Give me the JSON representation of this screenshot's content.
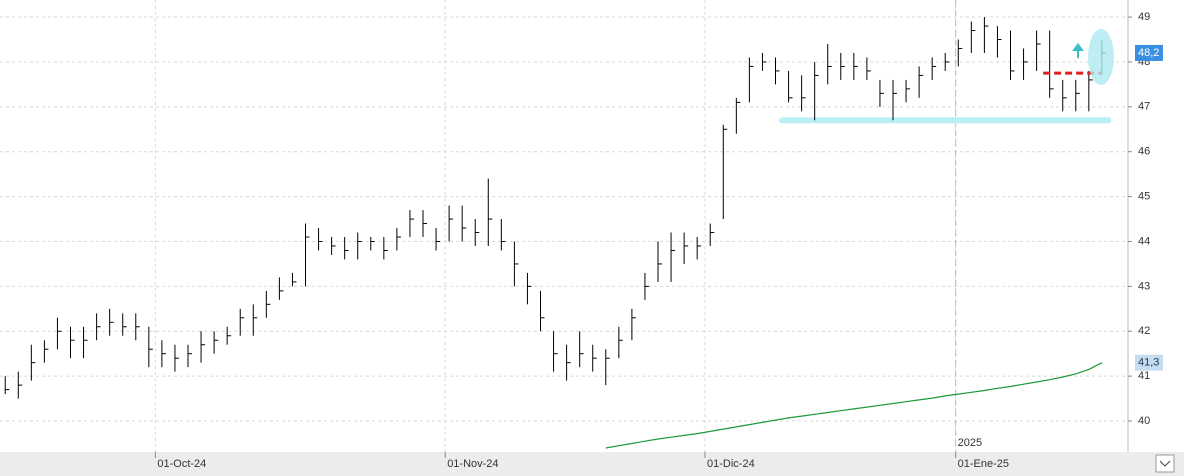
{
  "chart_data": {
    "type": "ohlc",
    "high": [
      41.0,
      41.1,
      41.7,
      41.8,
      42.3,
      42.1,
      42.1,
      42.4,
      42.5,
      42.4,
      42.4,
      42.1,
      41.8,
      41.7,
      41.7,
      42.0,
      42.0,
      42.1,
      42.5,
      42.6,
      42.9,
      43.2,
      43.3,
      44.4,
      44.3,
      44.1,
      44.1,
      44.2,
      44.1,
      44.1,
      44.3,
      44.7,
      44.7,
      44.3,
      44.8,
      44.8,
      44.5,
      45.4,
      44.5,
      44.0,
      43.3,
      42.9,
      42.0,
      41.7,
      42.0,
      41.7,
      41.6,
      42.1,
      42.5,
      43.3,
      44.0,
      44.2,
      44.2,
      44.1,
      44.4,
      46.6,
      47.2,
      48.1,
      48.2,
      48.1,
      47.8,
      47.7,
      48.0,
      48.4,
      48.2,
      48.2,
      48.1,
      47.6,
      47.6,
      47.6,
      47.9,
      48.1,
      48.2,
      48.5,
      48.9,
      49.0,
      48.8,
      48.7,
      48.3,
      48.7,
      48.7,
      47.6,
      47.6,
      47.8,
      48.5
    ],
    "low": [
      40.6,
      40.5,
      40.9,
      41.3,
      41.6,
      41.4,
      41.4,
      41.8,
      41.9,
      41.9,
      41.8,
      41.2,
      41.2,
      41.1,
      41.2,
      41.3,
      41.5,
      41.7,
      41.9,
      41.9,
      42.3,
      42.7,
      43.0,
      43.0,
      43.8,
      43.7,
      43.6,
      43.6,
      43.8,
      43.6,
      43.8,
      44.1,
      44.1,
      43.8,
      44.0,
      44.0,
      43.9,
      43.9,
      43.8,
      43.0,
      42.6,
      42.0,
      41.1,
      40.9,
      41.2,
      41.1,
      40.8,
      41.4,
      41.8,
      42.7,
      43.1,
      43.1,
      43.5,
      43.6,
      43.9,
      44.5,
      46.4,
      47.1,
      47.8,
      47.5,
      47.1,
      46.9,
      46.7,
      47.5,
      47.6,
      47.6,
      47.6,
      47.0,
      46.7,
      47.1,
      47.2,
      47.6,
      47.8,
      47.9,
      48.2,
      48.2,
      48.1,
      47.6,
      47.6,
      47.8,
      47.2,
      46.9,
      46.9,
      46.9,
      47.7
    ],
    "close": [
      40.7,
      40.8,
      41.3,
      41.6,
      42.0,
      41.8,
      41.8,
      42.1,
      42.2,
      42.1,
      42.1,
      41.6,
      41.5,
      41.4,
      41.5,
      41.7,
      41.8,
      41.9,
      42.3,
      42.3,
      42.6,
      42.9,
      43.1,
      44.1,
      44.0,
      43.9,
      43.8,
      44.0,
      44.0,
      43.8,
      44.1,
      44.5,
      44.4,
      44.0,
      44.5,
      44.3,
      44.2,
      44.5,
      44.0,
      43.5,
      43.0,
      42.3,
      41.5,
      41.3,
      41.5,
      41.4,
      41.4,
      41.8,
      42.3,
      43.0,
      43.5,
      43.8,
      43.9,
      43.9,
      44.2,
      46.5,
      47.1,
      47.9,
      48.0,
      47.8,
      47.2,
      47.2,
      47.7,
      47.9,
      47.9,
      47.9,
      47.8,
      47.3,
      47.3,
      47.4,
      47.7,
      47.9,
      48.0,
      48.3,
      48.7,
      48.8,
      48.5,
      47.8,
      48.0,
      48.4,
      47.4,
      47.2,
      47.3,
      47.6,
      48.2
    ],
    "color": "#000000",
    "moving_average": {
      "color": "#1a9a3a",
      "values": [
        null,
        null,
        null,
        null,
        null,
        null,
        null,
        null,
        null,
        null,
        null,
        null,
        null,
        null,
        null,
        null,
        null,
        null,
        null,
        null,
        null,
        null,
        null,
        null,
        null,
        null,
        null,
        null,
        null,
        null,
        null,
        null,
        null,
        null,
        null,
        null,
        null,
        null,
        null,
        null,
        null,
        null,
        null,
        null,
        null,
        null,
        39.4,
        39.45,
        39.5,
        39.55,
        39.6,
        39.64,
        39.68,
        39.72,
        39.77,
        39.82,
        39.87,
        39.92,
        39.97,
        40.02,
        40.07,
        40.11,
        40.15,
        40.19,
        40.23,
        40.27,
        40.31,
        40.35,
        40.39,
        40.43,
        40.47,
        40.51,
        40.56,
        40.6,
        40.64,
        40.68,
        40.73,
        40.77,
        40.82,
        40.87,
        40.92,
        40.98,
        41.05,
        41.15,
        41.3
      ]
    },
    "last_price": {
      "value": 48.2,
      "label": "48,2"
    },
    "last_average": {
      "value": 41.3,
      "label": "41,3"
    },
    "support": {
      "y": 46.7,
      "x": [
        59.5,
        84.5
      ],
      "color": "#b8f0f4"
    },
    "resistance": {
      "y": 47.75,
      "x": [
        79.5,
        84
      ],
      "color": "#e02020"
    },
    "xlim": [
      -0.4,
      86
    ],
    "ylim": [
      39.31,
      49.38
    ],
    "yticks": [
      40,
      41,
      42,
      43,
      44,
      45,
      46,
      47,
      48,
      49
    ],
    "xticks": [
      {
        "value": 11.5,
        "label": "01-Oct-24"
      },
      {
        "value": 33.7,
        "label": "01-Nov-24"
      },
      {
        "value": 53.6,
        "label": "01-Dic-24"
      },
      {
        "value": 72.8,
        "label": "01-Ene-25"
      }
    ],
    "year_marker": {
      "value": 72.8,
      "label": "2025"
    },
    "grid": true
  }
}
